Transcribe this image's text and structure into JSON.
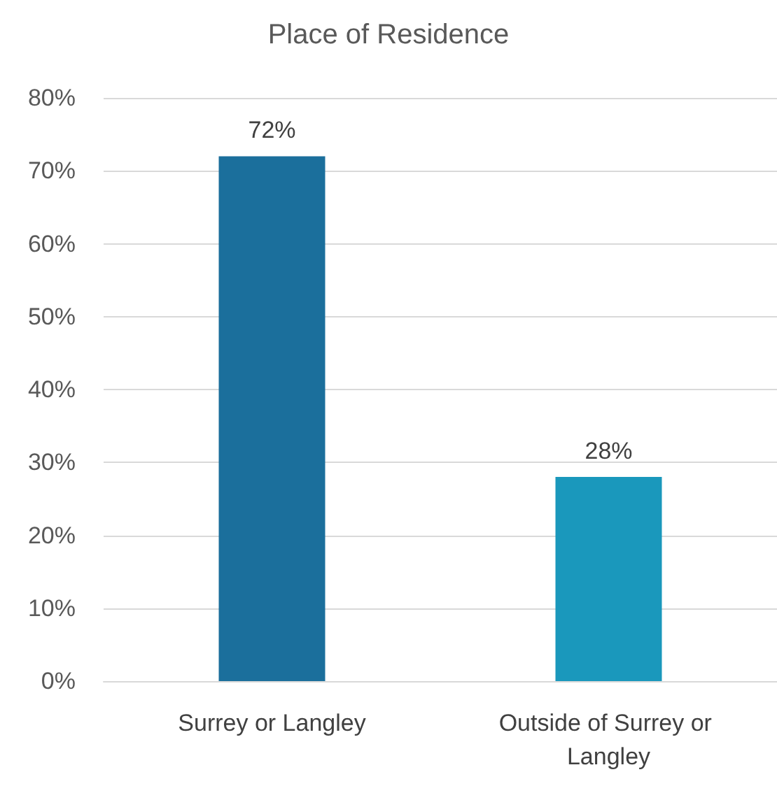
{
  "chart_data": {
    "type": "bar",
    "title": "Place of Residence",
    "categories": [
      "Surrey or Langley",
      "Outside of Surrey or Langley"
    ],
    "values": [
      72,
      28
    ],
    "colors": [
      "#1b6f9c",
      "#1a98bc"
    ],
    "value_labels": [
      "72%",
      "28%"
    ],
    "ylim": [
      0,
      80
    ],
    "yticks": [
      {
        "value": 0,
        "label": "0%"
      },
      {
        "value": 10,
        "label": "10%"
      },
      {
        "value": 20,
        "label": "20%"
      },
      {
        "value": 30,
        "label": "30%"
      },
      {
        "value": 40,
        "label": "40%"
      },
      {
        "value": 50,
        "label": "50%"
      },
      {
        "value": 60,
        "label": "60%"
      },
      {
        "value": 70,
        "label": "70%"
      },
      {
        "value": 80,
        "label": "80%"
      }
    ],
    "grid": "y"
  }
}
